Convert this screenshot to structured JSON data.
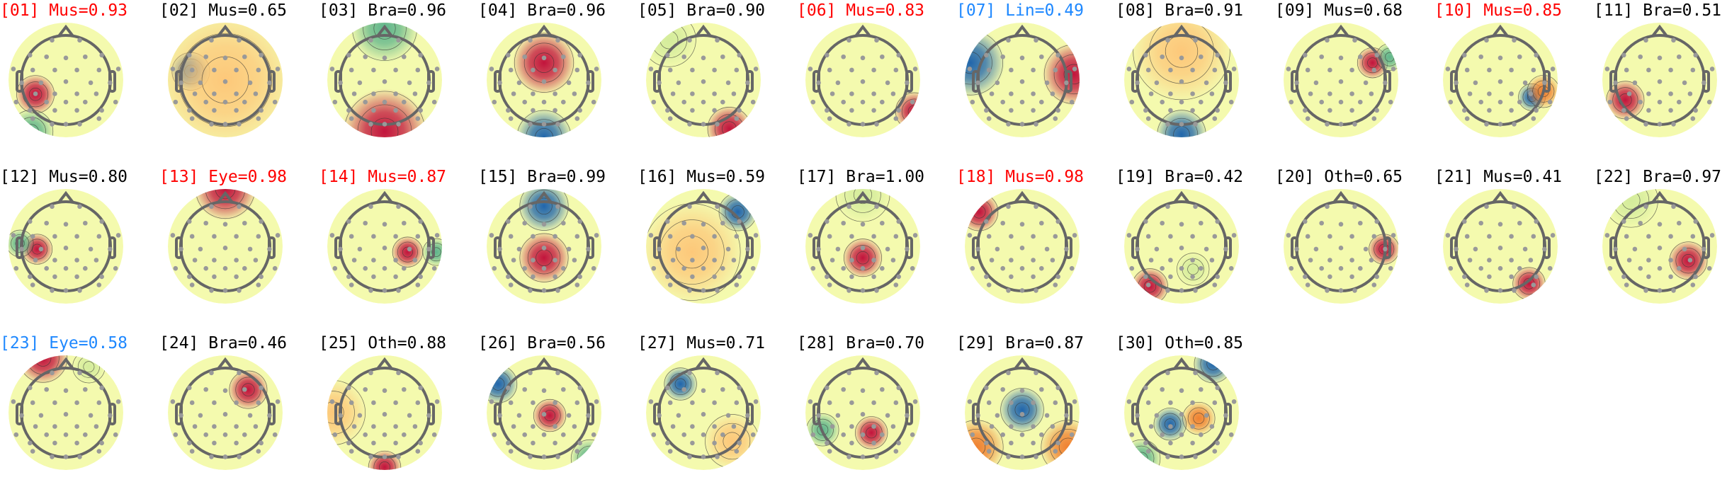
{
  "colors": {
    "normal": "#000000",
    "flag_red": "#ff0000",
    "flag_blue": "#1e88ff"
  },
  "chart_data": {
    "type": "topomap-grid",
    "components": [
      {
        "label": "[01] Mus=0.93",
        "cls": "Mus",
        "score": 0.93,
        "flag": "red"
      },
      {
        "label": "[02] Mus=0.65",
        "cls": "Mus",
        "score": 0.65,
        "flag": "none"
      },
      {
        "label": "[03] Bra=0.96",
        "cls": "Bra",
        "score": 0.96,
        "flag": "none"
      },
      {
        "label": "[04] Bra=0.96",
        "cls": "Bra",
        "score": 0.96,
        "flag": "none"
      },
      {
        "label": "[05] Bra=0.90",
        "cls": "Bra",
        "score": 0.9,
        "flag": "none"
      },
      {
        "label": "[06] Mus=0.83",
        "cls": "Mus",
        "score": 0.83,
        "flag": "red"
      },
      {
        "label": "[07] Lin=0.49",
        "cls": "Lin",
        "score": 0.49,
        "flag": "blue"
      },
      {
        "label": "[08] Bra=0.91",
        "cls": "Bra",
        "score": 0.91,
        "flag": "none"
      },
      {
        "label": "[09] Mus=0.68",
        "cls": "Mus",
        "score": 0.68,
        "flag": "none"
      },
      {
        "label": "[10] Mus=0.85",
        "cls": "Mus",
        "score": 0.85,
        "flag": "red"
      },
      {
        "label": "[11] Bra=0.51",
        "cls": "Bra",
        "score": 0.51,
        "flag": "none"
      },
      {
        "label": "[12] Mus=0.80",
        "cls": "Mus",
        "score": 0.8,
        "flag": "none"
      },
      {
        "label": "[13] Eye=0.98",
        "cls": "Eye",
        "score": 0.98,
        "flag": "red"
      },
      {
        "label": "[14] Mus=0.87",
        "cls": "Mus",
        "score": 0.87,
        "flag": "red"
      },
      {
        "label": "[15] Bra=0.99",
        "cls": "Bra",
        "score": 0.99,
        "flag": "none"
      },
      {
        "label": "[16] Mus=0.59",
        "cls": "Mus",
        "score": 0.59,
        "flag": "none"
      },
      {
        "label": "[17] Bra=1.00",
        "cls": "Bra",
        "score": 1.0,
        "flag": "none"
      },
      {
        "label": "[18] Mus=0.98",
        "cls": "Mus",
        "score": 0.98,
        "flag": "red"
      },
      {
        "label": "[19] Bra=0.42",
        "cls": "Bra",
        "score": 0.42,
        "flag": "none"
      },
      {
        "label": "[20] Oth=0.65",
        "cls": "Oth",
        "score": 0.65,
        "flag": "none"
      },
      {
        "label": "[21] Mus=0.41",
        "cls": "Mus",
        "score": 0.41,
        "flag": "none"
      },
      {
        "label": "[22] Bra=0.97",
        "cls": "Bra",
        "score": 0.97,
        "flag": "none"
      },
      {
        "label": "[23] Eye=0.58",
        "cls": "Eye",
        "score": 0.58,
        "flag": "blue"
      },
      {
        "label": "[24] Bra=0.46",
        "cls": "Bra",
        "score": 0.46,
        "flag": "none"
      },
      {
        "label": "[25] Oth=0.88",
        "cls": "Oth",
        "score": 0.88,
        "flag": "none"
      },
      {
        "label": "[26] Bra=0.56",
        "cls": "Bra",
        "score": 0.56,
        "flag": "none"
      },
      {
        "label": "[27] Mus=0.71",
        "cls": "Mus",
        "score": 0.71,
        "flag": "none"
      },
      {
        "label": "[28] Bra=0.70",
        "cls": "Bra",
        "score": 0.7,
        "flag": "none"
      },
      {
        "label": "[29] Bra=0.87",
        "cls": "Bra",
        "score": 0.87,
        "flag": "none"
      },
      {
        "label": "[30] Oth=0.85",
        "cls": "Oth",
        "score": 0.85,
        "flag": "none"
      }
    ]
  }
}
